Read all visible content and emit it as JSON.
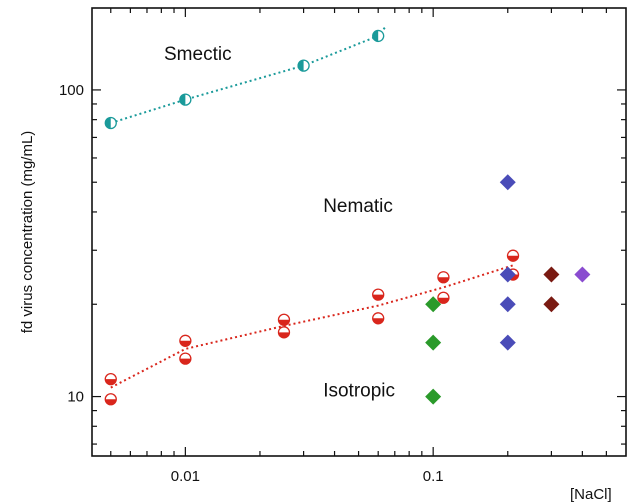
{
  "chart_data": {
    "type": "scatter",
    "title": "",
    "xlabel": "[NaCl]",
    "ylabel": "fd virus concentration (mg/mL)",
    "xscale": "log",
    "yscale": "log",
    "xlim": [
      0.0042,
      0.6
    ],
    "ylim": [
      6.4,
      185
    ],
    "xticks": [
      {
        "value": 0.01,
        "label": "0.01"
      },
      {
        "value": 0.1,
        "label": "0.1"
      }
    ],
    "yticks": [
      {
        "value": 10,
        "label": "10"
      },
      {
        "value": 100,
        "label": "100"
      }
    ],
    "grid": false,
    "regions": [
      {
        "label": "Smectic",
        "x": 0.0082,
        "y": 125
      },
      {
        "label": "Nematic",
        "x": 0.036,
        "y": 40
      },
      {
        "label": "Isotropic",
        "x": 0.036,
        "y": 10
      }
    ],
    "series": [
      {
        "marker": "half-circle",
        "color": "#1a9a9a",
        "points": [
          [
            0.005,
            78
          ],
          [
            0.01,
            93
          ],
          [
            0.03,
            120
          ],
          [
            0.06,
            150
          ]
        ],
        "trend": [
          [
            0.005,
            78
          ],
          [
            0.01,
            93
          ],
          [
            0.03,
            120
          ],
          [
            0.06,
            150
          ],
          [
            0.064,
            160
          ]
        ]
      },
      {
        "marker": "half-circle",
        "color": "#d9261c",
        "points": [
          [
            0.005,
            11.4
          ],
          [
            0.005,
            9.8
          ],
          [
            0.01,
            15.2
          ],
          [
            0.01,
            13.3
          ],
          [
            0.025,
            17.8
          ],
          [
            0.025,
            16.2
          ],
          [
            0.06,
            21.5
          ],
          [
            0.06,
            18.0
          ],
          [
            0.11,
            24.5
          ],
          [
            0.11,
            21.0
          ],
          [
            0.21,
            28.8
          ],
          [
            0.21,
            25.0
          ]
        ],
        "trend": [
          [
            0.005,
            10.7
          ],
          [
            0.01,
            14.3
          ],
          [
            0.025,
            17.0
          ],
          [
            0.06,
            19.8
          ],
          [
            0.11,
            22.7
          ],
          [
            0.21,
            26.8
          ]
        ]
      },
      {
        "marker": "diamond",
        "color": "#2a9a2a",
        "points": [
          [
            0.1,
            20
          ],
          [
            0.1,
            15
          ],
          [
            0.1,
            10
          ]
        ]
      },
      {
        "marker": "diamond",
        "color": "#4a4cb8",
        "points": [
          [
            0.2,
            50
          ],
          [
            0.2,
            25
          ],
          [
            0.2,
            20
          ],
          [
            0.2,
            15
          ]
        ]
      },
      {
        "marker": "diamond",
        "color": "#7a1a12",
        "points": [
          [
            0.3,
            25
          ],
          [
            0.3,
            20
          ]
        ]
      },
      {
        "marker": "diamond",
        "color": "#8a4cd0",
        "points": [
          [
            0.4,
            25
          ]
        ]
      }
    ]
  }
}
